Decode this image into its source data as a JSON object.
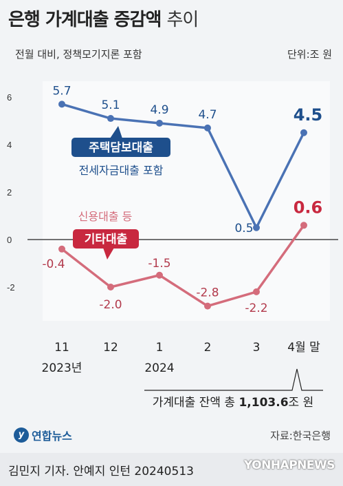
{
  "header": {
    "title_main": "은행 가계대출 증감액",
    "title_suffix": "추이",
    "subtitle": "전월 대비, 정책모기지론 포함",
    "unit": "단위:조 원"
  },
  "chart_data": {
    "type": "line",
    "categories": [
      "11",
      "12",
      "1",
      "2",
      "3",
      "4월 말"
    ],
    "year_labels": [
      "2023년",
      "2024"
    ],
    "ylim": [
      -3.6,
      6.6
    ],
    "yticks": [
      "6",
      "4",
      "2",
      "0",
      "-2"
    ],
    "series": [
      {
        "name": "주택담보대출",
        "sublabel": "전세자금대출 포함",
        "color": "#4a72b4",
        "label_color": "#1e4f8c",
        "values": [
          5.7,
          5.1,
          4.9,
          4.7,
          0.5,
          4.5
        ],
        "labels": [
          "5.7",
          "5.1",
          "4.9",
          "4.7",
          "0.5",
          "4.5"
        ]
      },
      {
        "name": "기타대출",
        "sublabel": "신용대출 등",
        "color": "#d46c7b",
        "label_color": "#c8283f",
        "values": [
          -0.4,
          -2.0,
          -1.5,
          -2.8,
          -2.2,
          0.6
        ],
        "labels": [
          "-0.4",
          "-2.0",
          "-1.5",
          "-2.8",
          "-2.2",
          "0.6"
        ]
      }
    ],
    "annotation": "가계대출 잔액 총 1,103.6조 원",
    "annotation_parts": [
      "가계대출 잔액 총 ",
      "1,103.6",
      "조 원"
    ]
  },
  "footer": {
    "logo": "연합뉴스",
    "source": "자료:한국은행",
    "credit": "김민지 기자. 안예지 인턴  20240513",
    "watermark": "YONHAPNEWS"
  },
  "colors": {
    "background": "#f2f4f6",
    "blue_series": "#4a72b4",
    "red_series": "#d46c7b",
    "blue_badge": "#1e4f8c",
    "red_badge": "#c8283f"
  }
}
